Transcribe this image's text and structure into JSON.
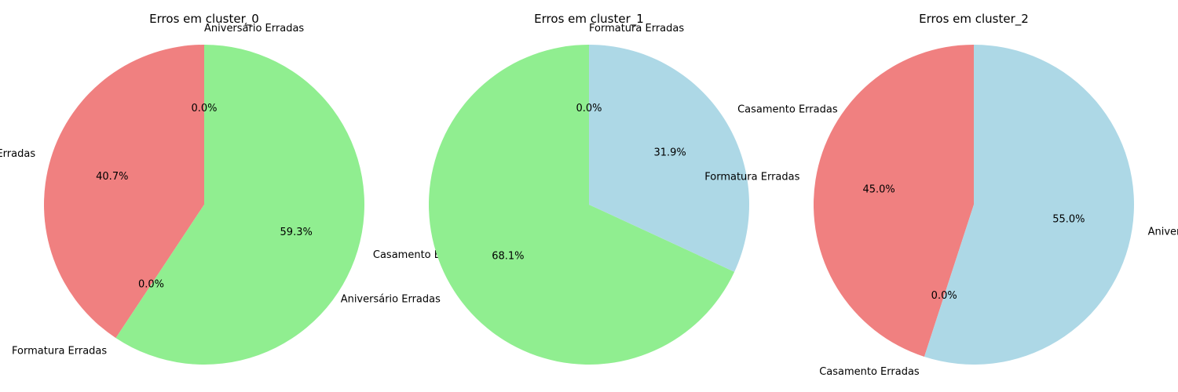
{
  "chart_data": [
    {
      "type": "pie",
      "title": "Erros em cluster_0",
      "slices": [
        {
          "label": "Aniversário Erradas",
          "value": 0.0,
          "pct_label": "0.0%",
          "color": "#add8e6"
        },
        {
          "label": "Aniversário Erradas",
          "value": 40.7,
          "pct_label": "40.7%",
          "color": "#f08080"
        },
        {
          "label": "Formatura Erradas",
          "value": 0.0,
          "pct_label": "0.0%",
          "color": "#add8e6"
        },
        {
          "label": "Casamento Erradas",
          "value": 59.3,
          "pct_label": "59.3%",
          "color": "#90ee90"
        }
      ]
    },
    {
      "type": "pie",
      "title": "Erros em cluster_1",
      "slices": [
        {
          "label": "Formatura Erradas",
          "value": 0.0,
          "pct_label": "0.0%",
          "color": "#f08080"
        },
        {
          "label": "Aniversário Erradas",
          "value": 68.1,
          "pct_label": "68.1%",
          "color": "#90ee90"
        },
        {
          "label": "Casamento Erradas",
          "value": 31.9,
          "pct_label": "31.9%",
          "color": "#add8e6"
        }
      ]
    },
    {
      "type": "pie",
      "title": "Erros em cluster_2",
      "slices": [
        {
          "label": "Formatura Erradas",
          "value": 45.0,
          "pct_label": "45.0%",
          "color": "#f08080"
        },
        {
          "label": "Casamento Erradas",
          "value": 0.0,
          "pct_label": "0.0%",
          "color": "#90ee90"
        },
        {
          "label": "Aniversário Erradas",
          "value": 55.0,
          "pct_label": "55.0%",
          "color": "#add8e6"
        }
      ]
    }
  ]
}
